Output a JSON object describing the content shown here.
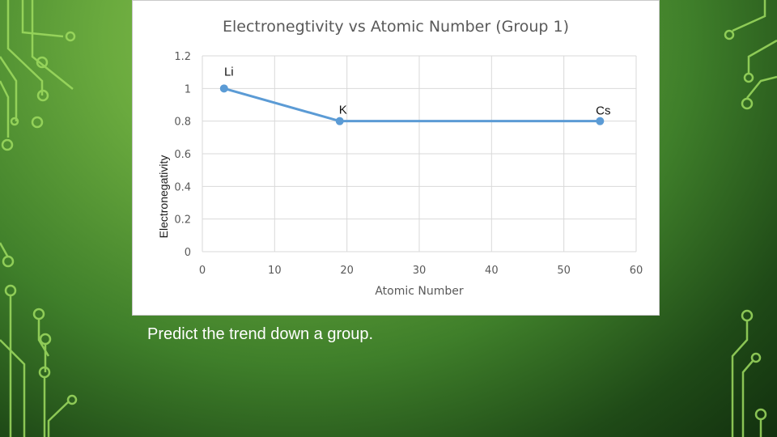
{
  "chart_data": {
    "type": "line",
    "title": "Electronegtivity vs Atomic Number (Group 1)",
    "xlabel": "Atomic Number",
    "ylabel": "Electronegativity",
    "xlim": [
      0,
      60
    ],
    "ylim": [
      0,
      1.2
    ],
    "xticks": [
      "0",
      "10",
      "20",
      "30",
      "40",
      "50",
      "60"
    ],
    "yticks": [
      "0",
      "0.2",
      "0.4",
      "0.6",
      "0.8",
      "1",
      "1.2"
    ],
    "grid": true,
    "series": [
      {
        "x": [
          3,
          19,
          55
        ],
        "y": [
          1.0,
          0.8,
          0.8
        ],
        "labels": [
          "Li",
          "K",
          "Cs"
        ],
        "color": "#5b9bd5"
      }
    ]
  },
  "caption": "Predict the trend down a group.",
  "colors": {
    "background": "#4f8f33",
    "circuit_line": "#9fdc60",
    "series": "#5b9bd5"
  }
}
